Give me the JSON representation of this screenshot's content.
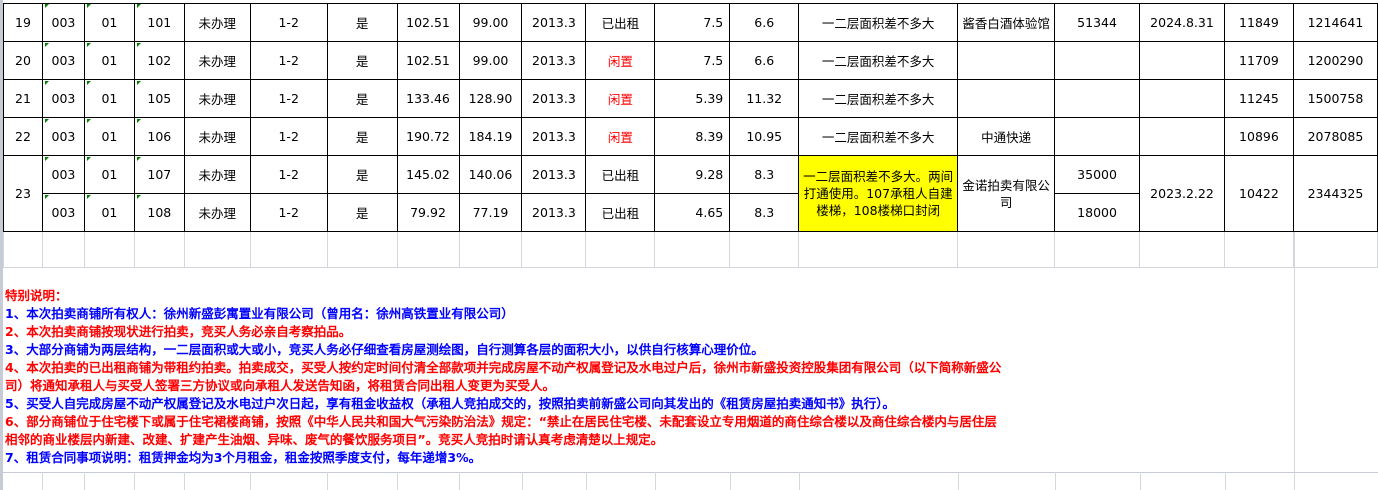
{
  "rows": [
    {
      "no": "19",
      "c1": "003",
      "c2": "01",
      "c3": "101",
      "c4": "未办理",
      "c5": "1-2",
      "c6": "是",
      "c7": "102.51",
      "c8": "99.00",
      "c9": "2013.3",
      "status": "已出租",
      "status_color": "#000000",
      "c11": "7.5",
      "c12": "6.6",
      "note": "一二层面积差不多大",
      "tenant": "酱香白酒体验馆",
      "rent": "51344",
      "end": "2024.8.31",
      "price": "11849",
      "total": "1214641"
    },
    {
      "no": "20",
      "c1": "003",
      "c2": "01",
      "c3": "102",
      "c4": "未办理",
      "c5": "1-2",
      "c6": "是",
      "c7": "102.51",
      "c8": "99.00",
      "c9": "2013.3",
      "status": "闲置",
      "status_color": "#ff0000",
      "c11": "7.5",
      "c12": "6.6",
      "note": "一二层面积差不多大",
      "tenant": "",
      "rent": "",
      "end": "",
      "price": "11709",
      "total": "1200290"
    },
    {
      "no": "21",
      "c1": "003",
      "c2": "01",
      "c3": "105",
      "c4": "未办理",
      "c5": "1-2",
      "c6": "是",
      "c7": "133.46",
      "c8": "128.90",
      "c9": "2013.3",
      "status": "闲置",
      "status_color": "#ff0000",
      "c11": "5.39",
      "c12": "11.32",
      "note": "一二层面积差不多大",
      "tenant": "",
      "rent": "",
      "end": "",
      "price": "11245",
      "total": "1500758"
    },
    {
      "no": "22",
      "c1": "003",
      "c2": "01",
      "c3": "106",
      "c4": "未办理",
      "c5": "1-2",
      "c6": "是",
      "c7": "190.72",
      "c8": "184.19",
      "c9": "2013.3",
      "status": "闲置",
      "status_color": "#ff0000",
      "c11": "8.39",
      "c12": "10.95",
      "note": "一二层面积差不多大",
      "tenant": "中通快递",
      "rent": "",
      "end": "",
      "price": "10896",
      "total": "2078085"
    }
  ],
  "merged": {
    "no": "23",
    "note": "一二层面积差不多大。两间打通使用。107承租人自建楼梯，108楼梯口封闭",
    "note_bg": "#ffff00",
    "tenant": "金诺拍卖有限公司",
    "end": "2023.2.22",
    "price": "10422",
    "total": "2344325",
    "sub": [
      {
        "c1": "003",
        "c2": "01",
        "c3": "107",
        "c4": "未办理",
        "c5": "1-2",
        "c6": "是",
        "c7": "145.02",
        "c8": "140.06",
        "c9": "2013.3",
        "status": "已出租",
        "c11": "9.28",
        "c12": "8.3",
        "rent": "35000"
      },
      {
        "c1": "003",
        "c2": "01",
        "c3": "108",
        "c4": "未办理",
        "c5": "1-2",
        "c6": "是",
        "c7": "79.92",
        "c8": "77.19",
        "c9": "2013.3",
        "status": "已出租",
        "c11": "4.65",
        "c12": "8.3",
        "rent": "18000"
      }
    ]
  },
  "notes": {
    "title": "特别说明：",
    "lines": [
      {
        "text": "1、本次拍卖商铺所有权人：徐州新盛彭寓置业有限公司（曾用名：徐州高铁置业有限公司）",
        "color": "#0000ff"
      },
      {
        "text": "2、本次拍卖商铺按现状进行拍卖，竞买人务必亲自考察拍品。",
        "color": "#ff0000"
      },
      {
        "text": "3、大部分商铺为两层结构，一二层面积或大或小，竞买人务必仔细查看房屋测绘图，自行测算各层的面积大小，以供自行核算心理价位。",
        "color": "#0000ff"
      },
      {
        "text": "4、本次拍卖的已出租商铺为带租约拍卖。拍卖成交，买受人按约定时间付清全部款项并完成房屋不动产权属登记及水电过户后，徐州市新盛投资控股集团有限公司（以下简称新盛公",
        "color": "#ff0000"
      },
      {
        "text": "司）将通知承租人与买受人签署三方协议或向承租人发送告知函，将租赁合同出租人变更为买受人。",
        "color": "#ff0000"
      },
      {
        "text": "5、买受人自完成房屋不动产权属登记及水电过户次日起，享有租金收益权（承租人竞拍成交的，按照拍卖前新盛公司向其发出的《租赁房屋拍卖通知书》执行）。",
        "color": "#0000ff"
      },
      {
        "text": "6、部分商铺位于住宅楼下或属于住宅裙楼商铺，按照《中华人民共和国大气污染防治法》规定：“禁止在居民住宅楼、未配套设立专用烟道的商住综合楼以及商住综合楼内与居住层",
        "color": "#ff0000"
      },
      {
        "text": "相邻的商业楼层内新建、改建、扩建产生油烟、异味、废气的餐饮服务项目”。竞买人竞拍时请认真考虑清楚以上规定。",
        "color": "#ff0000"
      },
      {
        "text": "7、租赁合同事项说明：租赁押金均为3个月租金，租金按照季度支付，每年递增3%。",
        "color": "#0000ff"
      }
    ]
  }
}
